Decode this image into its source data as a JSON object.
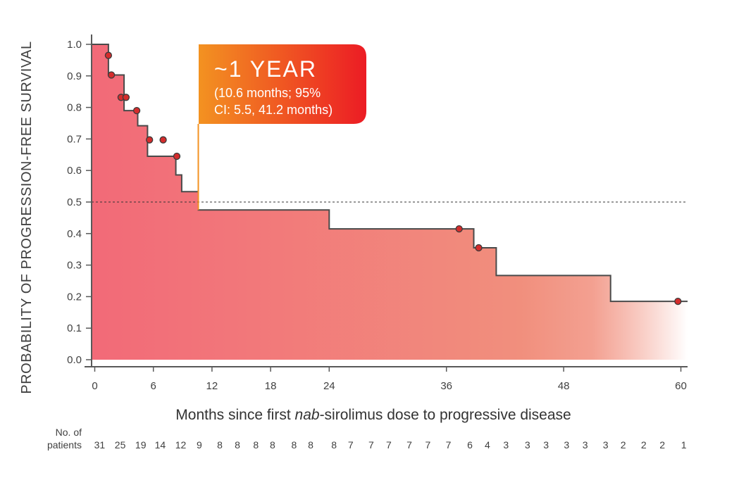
{
  "chart_data": {
    "type": "line",
    "subtype": "kaplan-meier-step",
    "ylabel": "PROBABILITY OF PROGRESSION-FREE SURVIVAL",
    "xlabel": {
      "before": "Months since first ",
      "italic": "nab",
      "after": "-sirolimus dose to progressive disease"
    },
    "xlim": [
      0,
      60
    ],
    "ylim": [
      0,
      1.0
    ],
    "x_ticks": [
      0,
      6,
      12,
      18,
      24,
      36,
      48,
      60
    ],
    "y_ticks": [
      "0.0",
      "0.1",
      "0.2",
      "0.3",
      "0.4",
      "0.5",
      "0.6",
      "0.7",
      "0.8",
      "0.9",
      "1.0"
    ],
    "reference_line_y": 0.5,
    "curve": [
      [
        0,
        1.0
      ],
      [
        1.4,
        1.0
      ],
      [
        1.4,
        0.903
      ],
      [
        3.0,
        0.903
      ],
      [
        3.0,
        0.79
      ],
      [
        4.4,
        0.79
      ],
      [
        4.4,
        0.742
      ],
      [
        5.4,
        0.742
      ],
      [
        5.4,
        0.645
      ],
      [
        8.3,
        0.645
      ],
      [
        8.3,
        0.586
      ],
      [
        8.9,
        0.586
      ],
      [
        8.9,
        0.533
      ],
      [
        10.6,
        0.533
      ],
      [
        10.6,
        0.475
      ],
      [
        24.0,
        0.475
      ],
      [
        24.0,
        0.415
      ],
      [
        38.8,
        0.415
      ],
      [
        38.8,
        0.355
      ],
      [
        41.1,
        0.355
      ],
      [
        41.1,
        0.267
      ],
      [
        52.8,
        0.267
      ],
      [
        52.8,
        0.185
      ],
      [
        60.0,
        0.185
      ]
    ],
    "censored": [
      [
        1.4,
        0.965
      ],
      [
        1.7,
        0.903
      ],
      [
        2.7,
        0.832
      ],
      [
        3.2,
        0.832
      ],
      [
        4.3,
        0.79
      ],
      [
        5.6,
        0.697
      ],
      [
        7.0,
        0.697
      ],
      [
        8.4,
        0.645
      ],
      [
        37.3,
        0.415
      ],
      [
        39.3,
        0.355
      ],
      [
        59.7,
        0.185
      ]
    ],
    "callout": {
      "headline": "~1 YEAR",
      "detail_line1": "(10.6 months; 95%",
      "detail_line2": "CI: 5.5, 41.2 months)",
      "x": 10.6,
      "colors": [
        "#f39221",
        "#ec1c24"
      ]
    },
    "at_risk": {
      "title_line1": "No. of",
      "title_line2": "patients",
      "entries": [
        {
          "x": 0.5,
          "n": "31"
        },
        {
          "x": 2.6,
          "n": "25"
        },
        {
          "x": 4.7,
          "n": "19"
        },
        {
          "x": 6.7,
          "n": "14"
        },
        {
          "x": 8.8,
          "n": "12"
        },
        {
          "x": 10.7,
          "n": "9"
        },
        {
          "x": 12.8,
          "n": "8"
        },
        {
          "x": 14.6,
          "n": "8"
        },
        {
          "x": 16.5,
          "n": "8"
        },
        {
          "x": 18.2,
          "n": "8"
        },
        {
          "x": 20.4,
          "n": "8"
        },
        {
          "x": 22.1,
          "n": "8"
        },
        {
          "x": 24.5,
          "n": "8"
        },
        {
          "x": 26.2,
          "n": "7"
        },
        {
          "x": 28.3,
          "n": "7"
        },
        {
          "x": 30.1,
          "n": "7"
        },
        {
          "x": 32.2,
          "n": "7"
        },
        {
          "x": 34.1,
          "n": "7"
        },
        {
          "x": 36.2,
          "n": "7"
        },
        {
          "x": 38.4,
          "n": "6"
        },
        {
          "x": 40.2,
          "n": "4"
        },
        {
          "x": 42.1,
          "n": "3"
        },
        {
          "x": 44.3,
          "n": "3"
        },
        {
          "x": 46.2,
          "n": "3"
        },
        {
          "x": 48.3,
          "n": "3"
        },
        {
          "x": 50.2,
          "n": "3"
        },
        {
          "x": 52.3,
          "n": "3"
        },
        {
          "x": 54.1,
          "n": "2"
        },
        {
          "x": 56.2,
          "n": "2"
        },
        {
          "x": 58.1,
          "n": "2"
        },
        {
          "x": 60.3,
          "n": "1"
        }
      ]
    },
    "colors": {
      "fill_start": "#f26a78",
      "fill_mid": "#f18f7d",
      "fill_end": "#ffffff",
      "line": "#4a4a4a",
      "marker": "#d42c2c",
      "axis": "#595959"
    }
  }
}
